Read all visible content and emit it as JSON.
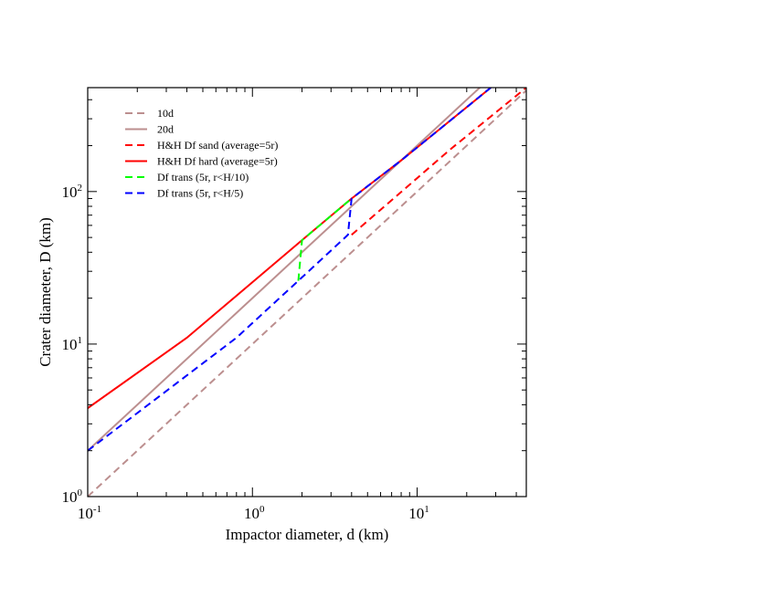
{
  "chart_data": {
    "type": "line",
    "title": "",
    "xlabel": "Impactor diameter, d (km)",
    "ylabel": "Crater diameter, D (km)",
    "xscale": "log",
    "yscale": "log",
    "xlim": [
      0.1,
      46
    ],
    "ylim": [
      1,
      480
    ],
    "grid": false,
    "legend_position": "top-left",
    "x_ticks": [
      {
        "value": 0.1,
        "base": "10",
        "exp": "-1"
      },
      {
        "value": 1,
        "base": "10",
        "exp": "0"
      },
      {
        "value": 10,
        "base": "10",
        "exp": "1"
      }
    ],
    "y_ticks": [
      {
        "value": 1,
        "base": "10",
        "exp": "0"
      },
      {
        "value": 10,
        "base": "10",
        "exp": "1"
      },
      {
        "value": 100,
        "base": "10",
        "exp": "2"
      }
    ],
    "series": [
      {
        "name": "10d",
        "color": "#bc8f8f",
        "style": "dashed",
        "x": [
          0.1,
          46
        ],
        "y": [
          1,
          460
        ]
      },
      {
        "name": "20d",
        "color": "#bc8f8f",
        "style": "solid",
        "x": [
          0.1,
          28
        ],
        "y": [
          2,
          560
        ]
      },
      {
        "name": "H&H Df sand (average=5r)",
        "color": "#ff0000",
        "style": "dashed",
        "x": [
          4,
          16,
          46
        ],
        "y": [
          52,
          190,
          480
        ]
      },
      {
        "name": "H&H Df hard (average=5r)",
        "color": "#ff0000",
        "style": "solid",
        "x": [
          0.1,
          0.4,
          2,
          4,
          8,
          28
        ],
        "y": [
          3.8,
          11,
          48,
          90,
          160,
          480
        ]
      },
      {
        "name": "Df trans (5r, r<H/10)",
        "color": "#00ff00",
        "style": "dashed",
        "x": [
          1.9,
          2,
          4
        ],
        "y": [
          26,
          48,
          90
        ]
      },
      {
        "name": "Df trans (5r, r<H/5)",
        "color": "#0000ff",
        "style": "dashed",
        "x": [
          0.1,
          0.8,
          1.9,
          3.8,
          4,
          8,
          28
        ],
        "y": [
          2,
          11,
          26,
          52,
          90,
          160,
          480
        ]
      }
    ]
  }
}
